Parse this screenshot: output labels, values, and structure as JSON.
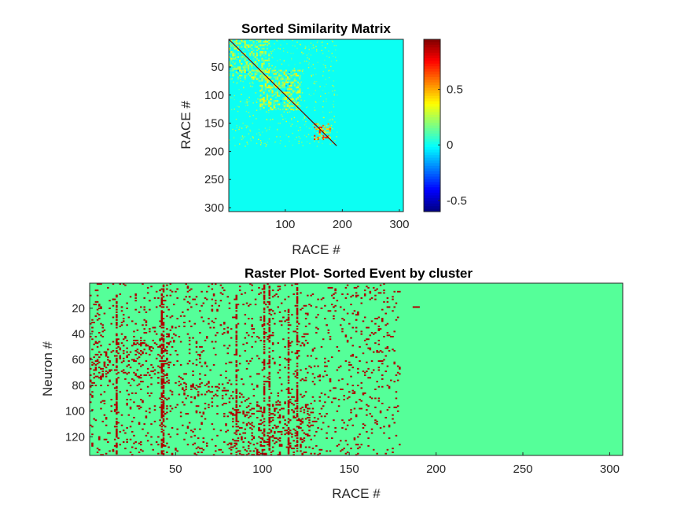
{
  "chart_data": [
    {
      "type": "heatmap",
      "title": "Sorted Similarity Matrix",
      "xlabel": "RACE #",
      "ylabel": "RACE #",
      "xlim": [
        1,
        307
      ],
      "ylim": [
        1,
        307
      ],
      "y_reversed": true,
      "xticks": [
        100,
        200,
        300
      ],
      "yticks": [
        50,
        100,
        150,
        200,
        250,
        300
      ],
      "colormap": "jet",
      "clim": [
        -0.6,
        0.95
      ],
      "colorbar_ticks": [
        -0.5,
        0,
        0.5
      ],
      "background_value": 0,
      "diagonal_value": 0.95,
      "diagonal_extent": [
        1,
        190
      ],
      "blocks": [
        {
          "range": [
            1,
            70
          ],
          "value": 0.18
        },
        {
          "range": [
            55,
            125
          ],
          "value": 0.2
        },
        {
          "range": [
            150,
            178
          ],
          "value": 0.35
        }
      ]
    },
    {
      "type": "heatmap",
      "title": "Raster Plot- Sorted Event by cluster",
      "xlabel": "RACE #",
      "ylabel": "Neuron #",
      "xlim": [
        1,
        307
      ],
      "ylim": [
        1,
        134
      ],
      "y_reversed": true,
      "xticks": [
        50,
        100,
        150,
        200,
        250,
        300
      ],
      "yticks": [
        20,
        40,
        60,
        80,
        100,
        120
      ],
      "colors": {
        "background": "#55ff99",
        "event": "#b00000"
      },
      "active_event_range": [
        1,
        190
      ],
      "dense_columns": [
        {
          "x": 16,
          "rows": [
            10,
            134
          ]
        },
        {
          "x": 42,
          "rows": [
            1,
            134
          ]
        },
        {
          "x": 43,
          "rows": [
            1,
            134
          ]
        },
        {
          "x": 85,
          "rows": [
            10,
            134
          ]
        },
        {
          "x": 101,
          "rows": [
            1,
            134
          ]
        },
        {
          "x": 104,
          "rows": [
            1,
            134
          ]
        },
        {
          "x": 115,
          "rows": [
            20,
            134
          ]
        },
        {
          "x": 120,
          "rows": [
            5,
            134
          ]
        }
      ],
      "dense_clusters": [
        {
          "x": [
            1,
            36
          ],
          "rows": [
            45,
            80
          ]
        },
        {
          "x": [
            40,
            46
          ],
          "rows": [
            40,
            82
          ]
        },
        {
          "x": [
            82,
            110
          ],
          "rows": [
            95,
            134
          ]
        },
        {
          "x": [
            110,
            130
          ],
          "rows": [
            90,
            134
          ]
        },
        {
          "x": [
            55,
            85
          ],
          "rows": [
            78,
            90
          ]
        }
      ],
      "isolated_events": [
        {
          "x": 187,
          "row": 19
        },
        {
          "x": 188,
          "row": 19
        },
        {
          "x": 189,
          "row": 19
        },
        {
          "x": 190,
          "row": 19
        },
        {
          "x": 128,
          "row": 133
        },
        {
          "x": 130,
          "row": 133
        },
        {
          "x": 133,
          "row": 133
        }
      ]
    }
  ]
}
